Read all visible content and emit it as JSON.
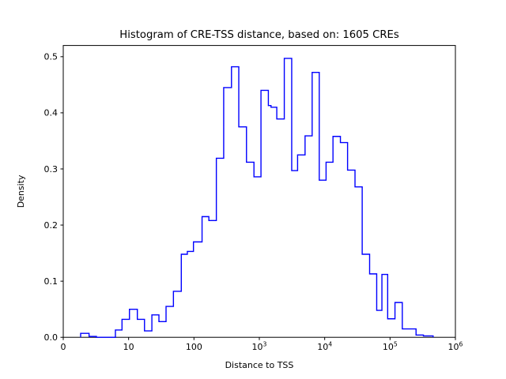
{
  "title": "Histogram of CRE-TSS distance, based on: 1605 CREs",
  "chart_data": {
    "type": "histogram-step",
    "title": "Histogram of CRE-TSS distance, based on: 1605 CREs",
    "xlabel": "Distance to TSS",
    "ylabel": "Density",
    "sample_count": 1605,
    "xscale": "symlog",
    "yscale": "linear",
    "xlim": [
      0,
      1000000
    ],
    "ylim": [
      0,
      0.52
    ],
    "grid": false,
    "legend": "none",
    "line_color": "#0000ff",
    "axis_color": "#000000",
    "background_color": "#ffffff",
    "x_ticks": [
      {
        "value": 0,
        "text": "0"
      },
      {
        "value": 10,
        "text": "10"
      },
      {
        "value": 100,
        "text": "100"
      },
      {
        "value": 1000,
        "text": "10",
        "exp": "3"
      },
      {
        "value": 10000,
        "text": "10",
        "exp": "4"
      },
      {
        "value": 100000,
        "text": "10",
        "exp": "5"
      },
      {
        "value": 1000000,
        "text": "10",
        "exp": "6"
      }
    ],
    "y_ticks": [
      {
        "value": 0.0,
        "text": "0.0"
      },
      {
        "value": 0.1,
        "text": "0.1"
      },
      {
        "value": 0.2,
        "text": "0.2"
      },
      {
        "value": 0.3,
        "text": "0.3"
      },
      {
        "value": 0.4,
        "text": "0.4"
      },
      {
        "value": 0.5,
        "text": "0.5"
      }
    ],
    "bin_edges": [
      2.66,
      3.95,
      5.08,
      7.98,
      8.99,
      10.3,
      13.6,
      17.5,
      22.7,
      29.1,
      37.4,
      48.5,
      64,
      79.2,
      98.2,
      133,
      169,
      220,
      285,
      375,
      485,
      636,
      828,
      1060,
      1375,
      1510,
      1850,
      2410,
      3130,
      3850,
      5010,
      6430,
      8260,
      10500,
      13400,
      17400,
      22400,
      29100,
      37500,
      48700,
      62500,
      75100,
      92000,
      119000,
      154000,
      250000,
      324000,
      456000
    ],
    "densities": [
      0.007,
      0.0015,
      0.0,
      0.013,
      0.032,
      0.05,
      0.032,
      0.0115,
      0.04,
      0.028,
      0.055,
      0.082,
      0.148,
      0.153,
      0.17,
      0.215,
      0.208,
      0.319,
      0.445,
      0.482,
      0.375,
      0.312,
      0.286,
      0.44,
      0.413,
      0.41,
      0.389,
      0.497,
      0.297,
      0.325,
      0.359,
      0.472,
      0.28,
      0.312,
      0.358,
      0.347,
      0.298,
      0.268,
      0.148,
      0.113,
      0.048,
      0.112,
      0.033,
      0.062,
      0.015,
      0.004,
      0.0025
    ]
  }
}
